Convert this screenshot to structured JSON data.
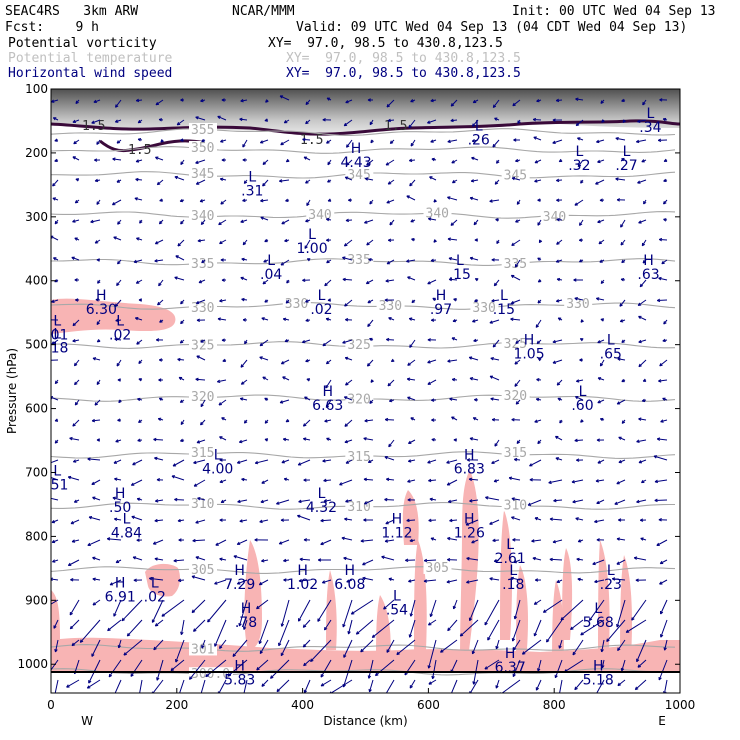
{
  "header": {
    "model": "SEAC4RS   3km ARW",
    "source": "NCAR/MMM",
    "forecast": "Fcst:    9 h",
    "init": "Init: 00 UTC Wed 04 Sep 13",
    "valid": "Valid: 09 UTC Wed 04 Sep 13 (04 CDT Wed 04 Sep 13)",
    "fields": [
      {
        "label": "Potential vorticity",
        "xy": "XY=  97.0, 98.5 to 430.8,123.5",
        "color": "#000000"
      },
      {
        "label": "Potential temperature",
        "xy": "XY=  97.0, 98.5 to 430.8,123.5",
        "color": "#c0c0c0"
      },
      {
        "label": "Horizontal wind speed",
        "xy": "XY=  97.0, 98.5 to 430.8,123.5",
        "color": "#000080"
      }
    ]
  },
  "chart_data": {
    "type": "cross-section",
    "xlabel": "Distance (km)",
    "ylabel": "Pressure (hPa)",
    "xlim": [
      0,
      1000
    ],
    "ylim": [
      1045,
      100
    ],
    "x_ticks": [
      "0",
      "200",
      "400",
      "600",
      "800",
      "1000"
    ],
    "y_ticks": [
      "100",
      "200",
      "300",
      "400",
      "500",
      "600",
      "700",
      "800",
      "900",
      "1000"
    ],
    "left_end_label": "W",
    "right_end_label": "E",
    "colors": {
      "pv_fill": "#f8b4b4",
      "theta": "#a8a8a8",
      "wind": "#000080",
      "tropopause": "#3a0a3a"
    },
    "theta_contours": [
      {
        "value": 355,
        "labels": [
          "355"
        ]
      },
      {
        "value": 350,
        "labels": [
          "350"
        ]
      },
      {
        "value": 345,
        "labels": [
          "345",
          "345",
          "345"
        ]
      },
      {
        "value": 340,
        "labels": [
          "340",
          "340",
          "340",
          "340"
        ]
      },
      {
        "value": 335,
        "labels": [
          "335",
          "335",
          "335"
        ]
      },
      {
        "value": 330,
        "labels": [
          "330",
          "330",
          "330",
          "330",
          "330"
        ]
      },
      {
        "value": 325,
        "labels": [
          "325",
          "325",
          "325"
        ]
      },
      {
        "value": 320,
        "labels": [
          "320",
          "320",
          "320"
        ]
      },
      {
        "value": 315,
        "labels": [
          "315",
          "315",
          "315"
        ]
      },
      {
        "value": 310,
        "labels": [
          "310",
          "310",
          "310"
        ]
      },
      {
        "value": 305,
        "labels": [
          "305",
          "305"
        ]
      },
      {
        "value": 301,
        "labels": [
          "301"
        ]
      },
      {
        "value": 300,
        "labels": [
          "300.0"
        ]
      }
    ],
    "pv_labels": [
      "1.5",
      "1.5",
      "1.5",
      "1.5"
    ],
    "extrema": [
      {
        "type": "H",
        "value": "4.43",
        "x": 485,
        "p": 200
      },
      {
        "type": "L",
        "value": ".26",
        "x": 680,
        "p": 165
      },
      {
        "type": "L",
        "value": ".32",
        "x": 840,
        "p": 205
      },
      {
        "type": "L",
        "value": ".27",
        "x": 915,
        "p": 205
      },
      {
        "type": "L",
        "value": ".34",
        "x": 953,
        "p": 145
      },
      {
        "type": "L",
        "value": ".31",
        "x": 320,
        "p": 245
      },
      {
        "type": "L",
        "value": "1.00",
        "x": 415,
        "p": 335
      },
      {
        "type": "L",
        "value": ".04",
        "x": 350,
        "p": 375
      },
      {
        "type": "L",
        "value": ".15",
        "x": 650,
        "p": 375
      },
      {
        "type": "H",
        "value": ".63",
        "x": 950,
        "p": 375
      },
      {
        "type": "H",
        "value": "6.30",
        "x": 80,
        "p": 430
      },
      {
        "type": "L",
        "value": ".02",
        "x": 110,
        "p": 470
      },
      {
        "type": "L",
        "value": ".01",
        "x": 10,
        "p": 470
      },
      {
        "type": "L",
        "value": ".02",
        "x": 430,
        "p": 430
      },
      {
        "type": "H",
        "value": ".97",
        "x": 620,
        "p": 430
      },
      {
        "type": "L",
        "value": ".15",
        "x": 720,
        "p": 430
      },
      {
        "type": "H",
        "value": "1.05",
        "x": 760,
        "p": 500
      },
      {
        "type": "L",
        "value": ".65",
        "x": 890,
        "p": 500
      },
      {
        "type": "H",
        "value": "6.63",
        "x": 440,
        "p": 580
      },
      {
        "type": "L",
        "value": ".60",
        "x": 845,
        "p": 580
      },
      {
        "type": "L",
        "value": "4.00",
        "x": 265,
        "p": 680
      },
      {
        "type": "H",
        "value": "6.83",
        "x": 665,
        "p": 680
      },
      {
        "type": "H",
        "value": ".50",
        "x": 110,
        "p": 740
      },
      {
        "type": "L",
        "value": "4.84",
        "x": 120,
        "p": 780
      },
      {
        "type": "L",
        "value": "4.32",
        "x": 430,
        "p": 740
      },
      {
        "type": "H",
        "value": "1.12",
        "x": 550,
        "p": 780
      },
      {
        "type": "H",
        "value": "1.26",
        "x": 665,
        "p": 780
      },
      {
        "type": "L",
        "value": "2.61",
        "x": 730,
        "p": 820
      },
      {
        "type": "H",
        "value": "7.29",
        "x": 300,
        "p": 860
      },
      {
        "type": "H",
        "value": "1.02",
        "x": 400,
        "p": 860
      },
      {
        "type": "H",
        "value": "6.08",
        "x": 475,
        "p": 860
      },
      {
        "type": "L",
        "value": ".18",
        "x": 735,
        "p": 860
      },
      {
        "type": "L",
        "value": ".23",
        "x": 890,
        "p": 860
      },
      {
        "type": "H",
        "value": "6.91",
        "x": 110,
        "p": 880
      },
      {
        "type": "L",
        "value": ".02",
        "x": 165,
        "p": 880
      },
      {
        "type": "L",
        "value": ".54",
        "x": 550,
        "p": 900
      },
      {
        "type": "H",
        "value": ".78",
        "x": 310,
        "p": 920
      },
      {
        "type": "L",
        "value": "5.68",
        "x": 870,
        "p": 920
      },
      {
        "type": "H",
        "value": "6.37",
        "x": 730,
        "p": 990
      },
      {
        "type": "H",
        "value": "5.83",
        "x": 300,
        "p": 1010
      },
      {
        "type": "H",
        "value": "5.18",
        "x": 870,
        "p": 1010
      },
      {
        "type": "L",
        "value": ".18",
        "x": 10,
        "p": 490
      },
      {
        "type": "L",
        "value": ".51",
        "x": 10,
        "p": 705
      }
    ]
  }
}
